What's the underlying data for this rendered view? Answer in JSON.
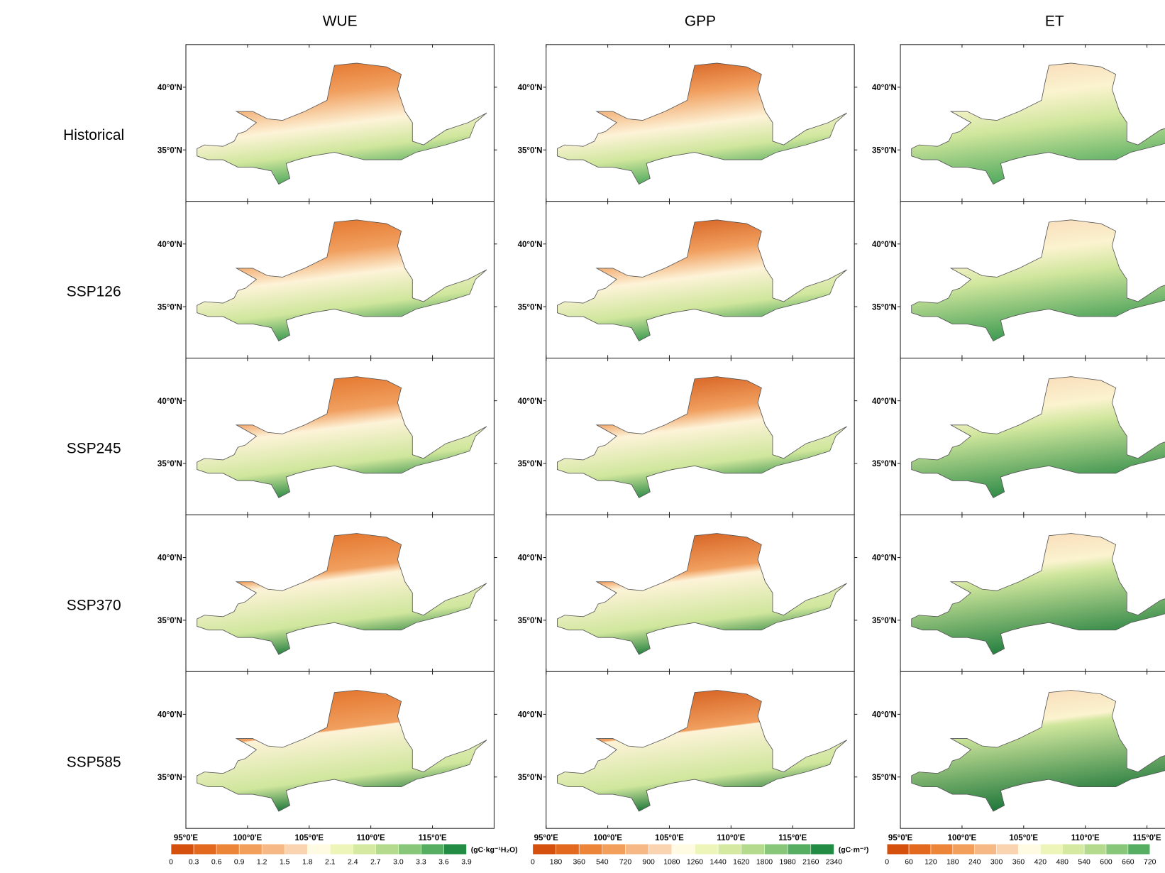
{
  "columns": [
    {
      "title": "WUE",
      "colorbar": {
        "unit": "(gC·kg⁻¹H₂O)",
        "colors": [
          "#d4500c",
          "#e3691e",
          "#ec8538",
          "#f29f5c",
          "#f6b985",
          "#fad4b0",
          "#fffbe3",
          "#eef5b8",
          "#d5eaa0",
          "#b3da8d",
          "#88c77a",
          "#56ae63",
          "#228c44"
        ],
        "ticks": [
          0,
          0.3,
          0.6,
          0.9,
          1.2,
          1.5,
          1.8,
          2.1,
          2.4,
          2.7,
          {
            "value": 3,
            "label": "3.0"
          },
          3.3,
          3.6,
          3.9
        ]
      }
    },
    {
      "title": "GPP",
      "colorbar": {
        "unit": "(gC·m⁻²)",
        "colors": [
          "#d4500c",
          "#e3691e",
          "#ec8538",
          "#f29f5c",
          "#f6b985",
          "#fad4b0",
          "#fffbe3",
          "#eef5b8",
          "#d5eaa0",
          "#b3da8d",
          "#88c77a",
          "#56ae63",
          "#228c44"
        ],
        "ticks": [
          0,
          180,
          360,
          540,
          720,
          900,
          1080,
          1260,
          1440,
          1620,
          1800,
          1980,
          2160,
          2340
        ]
      }
    },
    {
      "title": "ET",
      "colorbar": {
        "colors": [
          "#d4500c",
          "#e3691e",
          "#ec8538",
          "#f29f5c",
          "#f6b985",
          "#fad4b0",
          "#fffbe3",
          "#eef5b8",
          "#d5eaa0",
          "#b3da8d",
          "#88c77a",
          "#56ae63"
        ],
        "ticks": [
          0,
          60,
          120,
          180,
          240,
          300,
          360,
          420,
          480,
          540,
          600,
          660,
          720
        ]
      }
    }
  ],
  "rows": [
    "Historical",
    "SSP126",
    "SSP245",
    "SSP370",
    "SSP585"
  ],
  "map": {
    "lon_range": [
      95,
      120
    ],
    "lat_range": [
      30.9,
      43.4
    ],
    "lat_ticks": [
      {
        "value": 40,
        "label": "40°0'N"
      },
      {
        "value": 35,
        "label": "35°0'N"
      }
    ],
    "lon_ticks": [
      {
        "value": 95,
        "label": "95°0'E"
      },
      {
        "value": 100,
        "label": "100°0'E"
      },
      {
        "value": 105,
        "label": "105°0'E"
      },
      {
        "value": 110,
        "label": "110°0'E"
      },
      {
        "value": 115,
        "label": "115°0'E"
      }
    ]
  }
}
